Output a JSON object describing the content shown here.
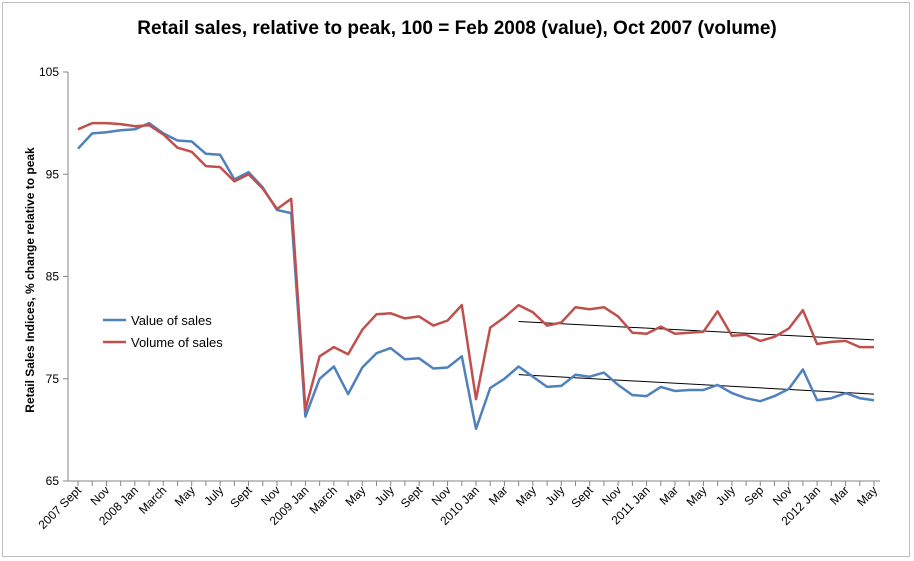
{
  "chart_data": {
    "type": "line",
    "title": "Retail sales, relative to peak, 100 = Feb 2008 (value), Oct 2007 (volume)",
    "xlabel": "",
    "ylabel": "Retail Sales Indices, % change relative to peak",
    "ylim": [
      65,
      105
    ],
    "yticks": [
      65,
      75,
      85,
      95,
      105
    ],
    "x_tick_labels": [
      "2007 Sept",
      "Nov",
      "2008 Jan",
      "March",
      "May",
      "July",
      "Sept",
      "Nov",
      "2009 Jan",
      "March",
      "May",
      "July",
      "Sept",
      "Nov",
      "2010 Jan",
      "Mar",
      "May",
      "July",
      "Sept",
      "Nov",
      "2011 Jan",
      "Mar",
      "May",
      "July",
      "Sep",
      "Nov",
      "2012 Jan",
      "Mar",
      "May"
    ],
    "x_tick_start_index": 0,
    "x_tick_step": 2,
    "series": [
      {
        "name": "Value of sales",
        "color": "#4f81bd",
        "values": [
          97.5,
          99.0,
          99.1,
          99.3,
          99.4,
          100.0,
          99.0,
          98.3,
          98.2,
          97.0,
          96.9,
          94.5,
          95.2,
          93.7,
          91.5,
          91.2,
          71.3,
          75.0,
          76.2,
          73.5,
          76.1,
          77.5,
          78.0,
          76.9,
          77.0,
          76.0,
          76.1,
          77.2,
          70.1,
          74.1,
          75.0,
          76.2,
          75.2,
          74.2,
          74.3,
          75.4,
          75.2,
          75.6,
          74.4,
          73.4,
          73.3,
          74.2,
          73.8,
          73.9,
          73.9,
          74.4,
          73.6,
          73.1,
          72.8,
          73.3,
          74.0,
          75.9,
          72.9,
          73.1,
          73.6,
          73.1,
          72.9
        ]
      },
      {
        "name": "Volume of sales",
        "color": "#c0504d",
        "values": [
          99.4,
          100.0,
          100.0,
          99.9,
          99.7,
          99.8,
          98.9,
          97.6,
          97.2,
          95.8,
          95.7,
          94.3,
          95.0,
          93.6,
          91.6,
          92.6,
          72.0,
          77.2,
          78.1,
          77.4,
          79.8,
          81.3,
          81.4,
          80.9,
          81.1,
          80.2,
          80.7,
          82.2,
          73.0,
          80.0,
          81.0,
          82.2,
          81.5,
          80.2,
          80.5,
          82.0,
          81.8,
          82.0,
          81.1,
          79.5,
          79.4,
          80.1,
          79.4,
          79.5,
          79.6,
          81.6,
          79.2,
          79.3,
          78.7,
          79.1,
          79.9,
          81.7,
          78.4,
          78.6,
          78.7,
          78.1,
          78.1
        ]
      }
    ],
    "trendlines": [
      {
        "series": "Volume of sales",
        "x_index_range": [
          31,
          56
        ],
        "y_range": [
          80.6,
          78.8
        ]
      },
      {
        "series": "Value of sales",
        "x_index_range": [
          31,
          56
        ],
        "y_range": [
          75.4,
          73.5
        ]
      }
    ],
    "grid": false,
    "legend_position": "center-left"
  }
}
